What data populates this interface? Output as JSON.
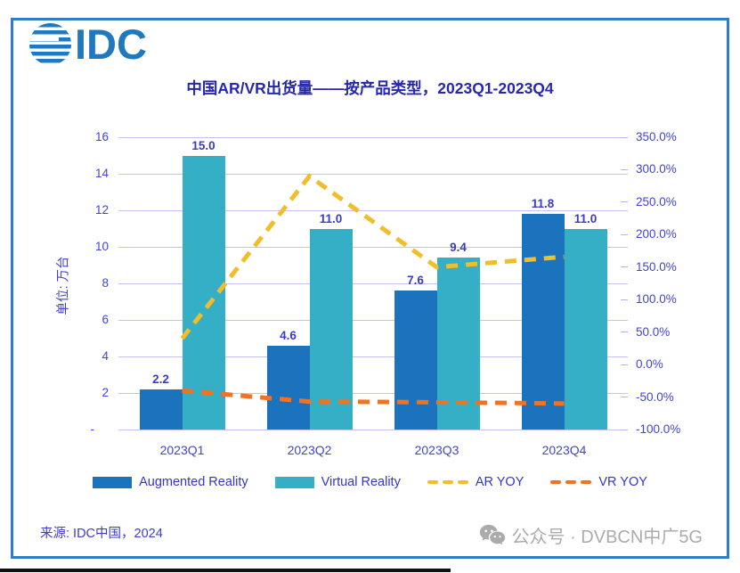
{
  "logo": {
    "text": "IDC"
  },
  "title": "中国AR/VR出货量——按产品类型，2023Q1-2023Q4",
  "chart_data": {
    "type": "bar",
    "title": "中国AR/VR出货量——按产品类型，2023Q1-2023Q4",
    "categories": [
      "2023Q1",
      "2023Q2",
      "2023Q3",
      "2023Q4"
    ],
    "bar_series": [
      {
        "name": "Augmented Reality",
        "color": "#1b72bd",
        "values": [
          2.2,
          4.6,
          7.6,
          11.8
        ]
      },
      {
        "name": "Virtual Reality",
        "color": "#35afc6",
        "values": [
          15.0,
          11.0,
          9.4,
          11.0
        ]
      }
    ],
    "line_series": [
      {
        "name": "AR YOY",
        "color": "#f2bd2b",
        "values": [
          40.0,
          290.0,
          150.0,
          166.0
        ]
      },
      {
        "name": "VR YOY",
        "color": "#ed7424",
        "values": [
          -40.0,
          -57.0,
          -58.0,
          -60.0
        ]
      }
    ],
    "left_axis": {
      "title": "单位: 万台",
      "min": 0,
      "max": 16,
      "ticks": [
        "16",
        "14",
        "12",
        "10",
        "8",
        "6",
        "4",
        "2",
        "-"
      ]
    },
    "right_axis": {
      "min": -100,
      "max": 350,
      "ticks": [
        "350.0%",
        "300.0%",
        "250.0%",
        "200.0%",
        "150.0%",
        "100.0%",
        "50.0%",
        "0.0%",
        "-50.0%",
        "-100.0%"
      ]
    },
    "grid": true,
    "legend_position": "bottom"
  },
  "source": "来源: IDC中国，2024",
  "watermark": {
    "icon": "wechat-icon",
    "text": "公众号 · DVBCN中广5G"
  }
}
